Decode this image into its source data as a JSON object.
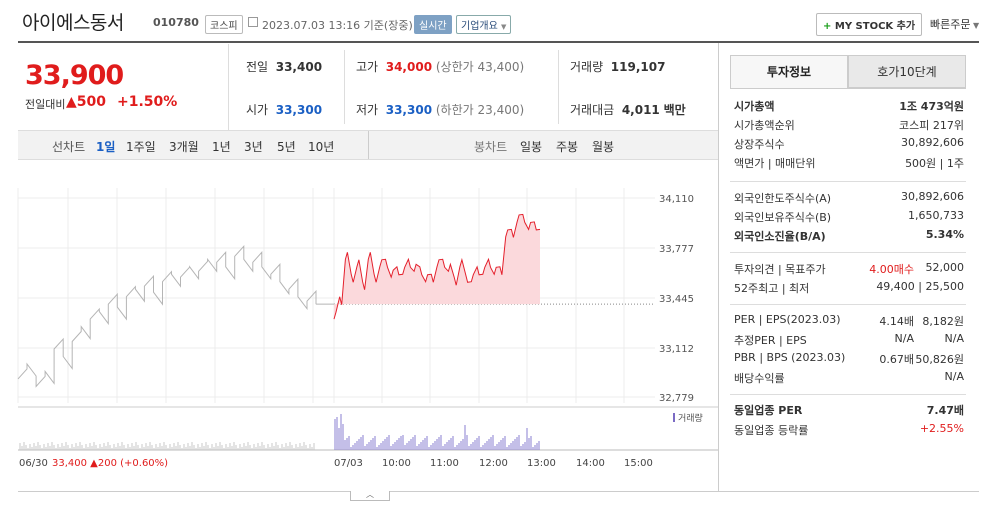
{
  "header": {
    "company_name": "아이에스동서",
    "code": "010780",
    "market": "코스피",
    "date_text": "2023.07.03 13:16 기준(장중)",
    "realtime_label": "실시간",
    "corp_overview_label": "기업개요",
    "my_stock_label": "MY STOCK 추가",
    "quick_order_label": "빠른주문"
  },
  "price_block": {
    "current_price": "33,900",
    "prev_compare_label": "전일대비",
    "change": "500",
    "change_pct": "+1.50%"
  },
  "quote": {
    "prev_close_label": "전일",
    "prev_close": "33,400",
    "high_label": "고가",
    "high": "34,000",
    "upper_limit": "(상한가 43,400)",
    "volume_label": "거래량",
    "volume": "119,107",
    "open_label": "시가",
    "open": "33,300",
    "low_label": "저가",
    "low": "33,300",
    "lower_limit": "(하한가 23,400)",
    "amount_label": "거래대금",
    "amount": "4,011",
    "amount_unit": "백만"
  },
  "chart_toolbar": {
    "line_chart_label": "선차트",
    "periods": [
      "1일",
      "1주일",
      "3개월",
      "1년",
      "3년",
      "5년",
      "10년"
    ],
    "active_period": "1일",
    "candle_label": "봉차트",
    "candle_periods": [
      "일봉",
      "주봉",
      "월봉"
    ]
  },
  "chart_data": {
    "type": "line",
    "y_ticks": [
      "34,110",
      "33,777",
      "33,445",
      "33,112",
      "32,779"
    ],
    "ylim": [
      32779,
      34110
    ],
    "x_ticks": [
      "07/03",
      "10:00",
      "11:00",
      "12:00",
      "13:00",
      "14:00",
      "15:00"
    ],
    "volume_legend": "거래량",
    "prev_day_label": "06/30",
    "prev_day_price": "33,400",
    "prev_day_change": "200",
    "prev_day_pct": "(+0.60%)",
    "reference_price": 33400,
    "prev_day_series": [
      32900,
      33000,
      32850,
      32950,
      33100,
      33050,
      33150,
      33250,
      33300,
      33350,
      33400,
      33380,
      33450,
      33500,
      33520,
      33480,
      33550,
      33600,
      33580,
      33650,
      33620,
      33700,
      33680,
      33650,
      33720,
      33700,
      33680,
      33650,
      33600,
      33550,
      33500,
      33450,
      33420,
      33400
    ],
    "today_series": [
      33300,
      33450,
      33700,
      33600,
      33650,
      33550,
      33700,
      33600,
      33650,
      33700,
      33580,
      33650,
      33600,
      33700,
      33620,
      33650,
      33550,
      33600,
      33650,
      33700,
      33620,
      33580,
      33650,
      33600,
      33550,
      33650,
      33600,
      33700,
      33600,
      33650,
      33850,
      33900,
      33950,
      34000,
      33900,
      33950,
      33900
    ]
  },
  "right_panel": {
    "tab_info": "투자정보",
    "tab_orderbook": "호가10단계",
    "rows_1": [
      {
        "label": "시가총액",
        "value": "1조 473억원"
      },
      {
        "label": "시가총액순위",
        "value": "코스피 217위"
      },
      {
        "label": "상장주식수",
        "value": "30,892,606"
      },
      {
        "label": "액면가 | 매매단위",
        "value": "500원 | 1주"
      }
    ],
    "rows_2": [
      {
        "label": "외국인한도주식수(A)",
        "value": "30,892,606"
      },
      {
        "label": "외국인보유주식수(B)",
        "value": "1,650,733"
      },
      {
        "label": "외국인소진율(B/A)",
        "value": "5.34%"
      }
    ],
    "rows_3": [
      {
        "label": "투자의견 | 목표주가",
        "opinion": "4.00매수",
        "value": "52,000"
      },
      {
        "label": "52주최고 | 최저",
        "value": "49,400 | 25,500"
      }
    ],
    "rows_4": [
      {
        "label": "PER | EPS(2023.03)",
        "mid": "4.14배",
        "value": "8,182원"
      },
      {
        "label": "추정PER | EPS",
        "mid": "N/A",
        "value": "N/A"
      },
      {
        "label": "PBR | BPS (2023.03)",
        "mid": "0.67배",
        "value": "50,826원"
      },
      {
        "label": "배당수익률",
        "value": "N/A"
      }
    ],
    "rows_5": [
      {
        "label": "동일업종 PER",
        "value": "7.47배"
      },
      {
        "label": "동일업종 등락률",
        "value": "+2.55%"
      }
    ]
  }
}
